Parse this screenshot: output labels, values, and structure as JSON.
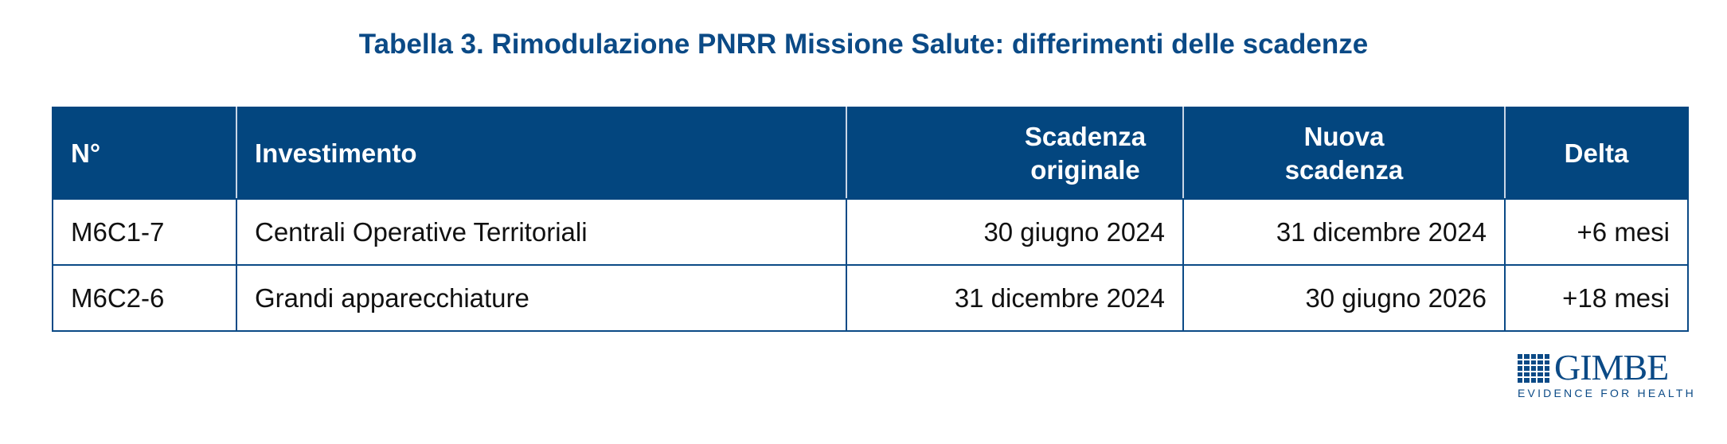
{
  "title": "Tabella 3. Rimodulazione PNRR Missione Salute: differimenti delle scadenze",
  "table": {
    "headers": [
      "N°",
      "Investimento",
      "Scadenza originale",
      "Nuova scadenza",
      "Delta"
    ],
    "rows": [
      [
        "M6C1-7",
        "Centrali Operative Territoriali",
        "30 giugno 2024",
        "31 dicembre 2024",
        "+6 mesi"
      ],
      [
        "M6C2-6",
        "Grandi apparecchiature",
        "31 dicembre 2024",
        "30 giugno 2026",
        "+18 mesi"
      ]
    ]
  },
  "logo": {
    "name": "GIMBE",
    "tagline": "EVIDENCE FOR HEALTH"
  },
  "colors": {
    "header": "#03467f",
    "title": "#0b4a86"
  }
}
